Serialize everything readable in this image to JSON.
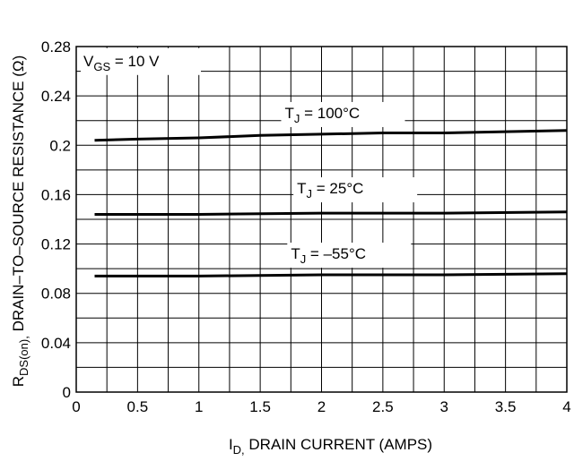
{
  "chart_data": {
    "type": "line",
    "xlabel": "I",
    "xlabel_sub": "D,",
    "xlabel_rest": " DRAIN CURRENT (AMPS)",
    "ylabel": "R",
    "ylabel_sub": "DS(on),",
    "ylabel_rest": " DRAIN–TO–SOURCE RESISTANCE (Ω)",
    "xlim": [
      0,
      4
    ],
    "ylim": [
      0,
      0.28
    ],
    "xticks": [
      0,
      0.5,
      1,
      1.5,
      2,
      2.5,
      3,
      3.5,
      4
    ],
    "xtick_labels": [
      "0",
      "0.5",
      "1",
      "1.5",
      "2",
      "2.5",
      "3",
      "3.5",
      "4"
    ],
    "yticks": [
      0,
      0.04,
      0.08,
      0.12,
      0.16,
      0.2,
      0.24,
      0.28
    ],
    "ytick_labels": [
      "0",
      "0.04",
      "0.08",
      "0.12",
      "0.16",
      "0.2",
      "0.24",
      "0.28"
    ],
    "grid": true,
    "condition": {
      "main": "V",
      "sub": "GS",
      "rest": " = 10 V"
    },
    "series": [
      {
        "name_main": "T",
        "name_sub": "J",
        "name_rest": " = 100°C",
        "x": [
          0.15,
          0.5,
          1,
          1.5,
          2,
          2.5,
          3,
          3.5,
          4
        ],
        "values": [
          0.204,
          0.205,
          0.206,
          0.208,
          0.209,
          0.21,
          0.21,
          0.211,
          0.212
        ],
        "label_x": 1.7,
        "label_y": 0.222
      },
      {
        "name_main": "T",
        "name_sub": "J",
        "name_rest": " = 25°C",
        "x": [
          0.15,
          1,
          2,
          3,
          4
        ],
        "values": [
          0.144,
          0.144,
          0.145,
          0.145,
          0.146
        ],
        "label_x": 1.8,
        "label_y": 0.161
      },
      {
        "name_main": "T",
        "name_sub": "J",
        "name_rest": " = –55°C",
        "x": [
          0.15,
          1,
          2,
          3,
          4
        ],
        "values": [
          0.094,
          0.094,
          0.095,
          0.095,
          0.096
        ],
        "label_x": 1.75,
        "label_y": 0.108
      }
    ]
  }
}
